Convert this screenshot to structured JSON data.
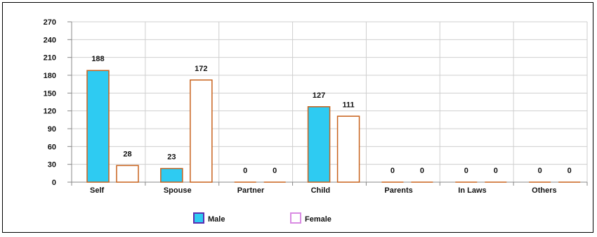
{
  "chart_data": {
    "type": "bar",
    "categories": [
      "Self",
      "Spouse",
      "Partner",
      "Child",
      "Parents",
      "In Laws",
      "Others"
    ],
    "series": [
      {
        "name": "Male",
        "values": [
          188,
          23,
          0,
          127,
          0,
          0,
          0
        ],
        "fill": "#2ecbf2",
        "stroke": "#c8621c"
      },
      {
        "name": "Female",
        "values": [
          28,
          172,
          0,
          111,
          0,
          0,
          0
        ],
        "fill": "#ffffff",
        "stroke": "#c8621c"
      }
    ],
    "ylim": [
      0,
      270
    ],
    "yticks": [
      0,
      30,
      60,
      90,
      120,
      150,
      180,
      210,
      240,
      270
    ],
    "grid": true,
    "legend": "bottom",
    "legend_swatch_borders": {
      "Male": "#5a2db0",
      "Female": "#d98be3"
    }
  }
}
